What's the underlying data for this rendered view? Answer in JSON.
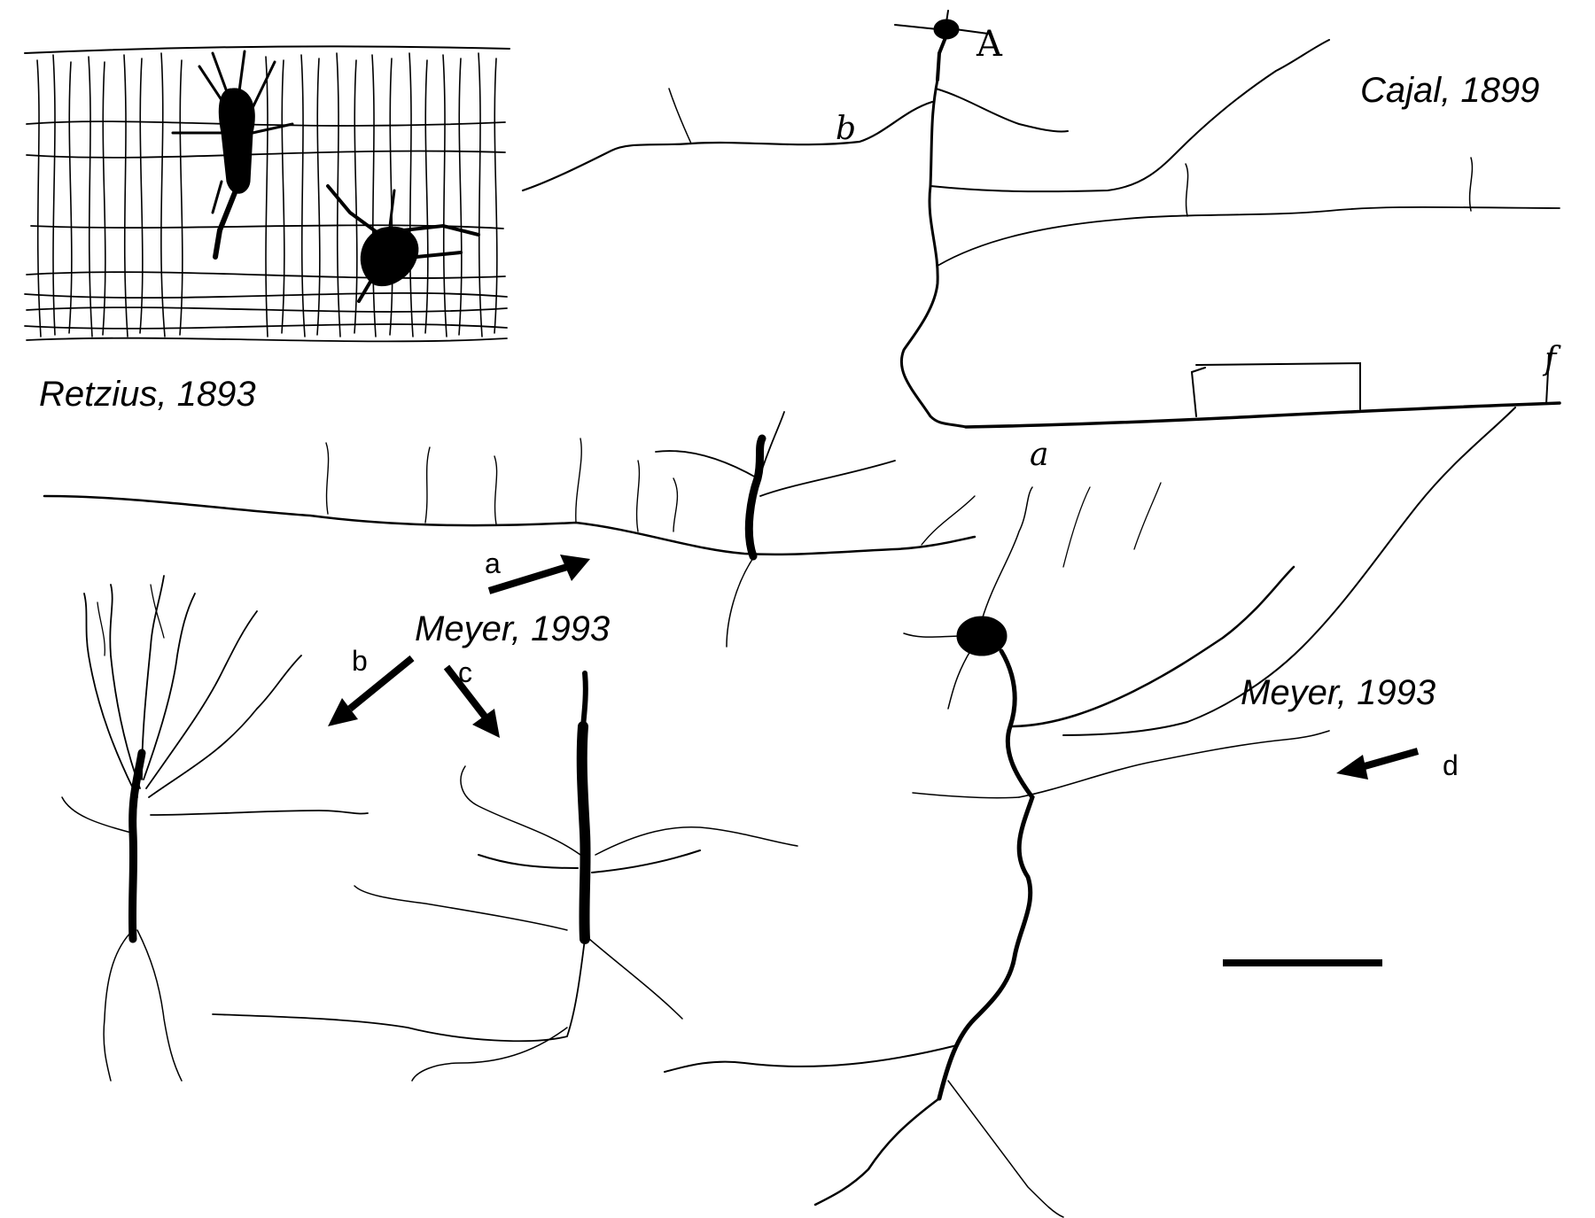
{
  "citations": {
    "retzius": "Retzius, 1893",
    "cajal": "Cajal, 1899",
    "meyer_center": "Meyer, 1993",
    "meyer_right": "Meyer, 1993"
  },
  "cajal_letters": {
    "A": "A",
    "b": "b",
    "a": "a",
    "f": "f"
  },
  "arrow_labels": {
    "a": "a",
    "b": "b",
    "c": "c",
    "d": "d"
  }
}
